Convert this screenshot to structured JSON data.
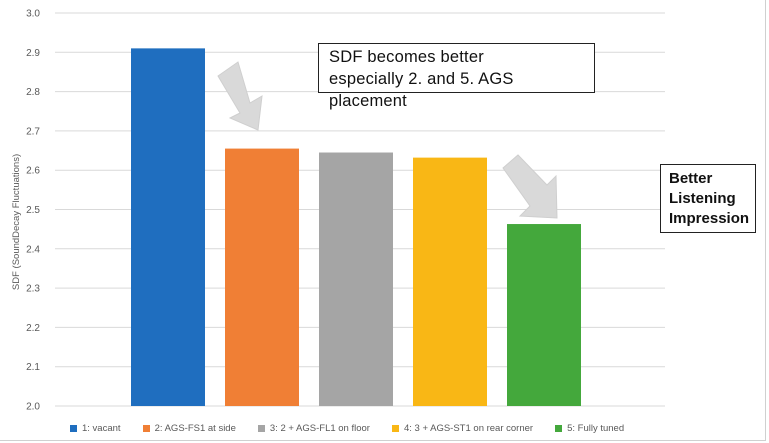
{
  "chart_data": {
    "type": "bar",
    "ylabel": "SDF (SoundDecay Fluctuations)",
    "ylim": [
      2.0,
      3.0
    ],
    "yticks": [
      "2.0",
      "2.1",
      "2.2",
      "2.3",
      "2.4",
      "2.5",
      "2.6",
      "2.7",
      "2.8",
      "2.9",
      "3.0"
    ],
    "grid": true,
    "legend_position": "bottom",
    "series": [
      {
        "name": "1: vacant",
        "value": 2.91,
        "color": "#1f6ebf"
      },
      {
        "name": "2: AGS-FS1 at side",
        "value": 2.655,
        "color": "#f07f35"
      },
      {
        "name": "3: 2 + AGS-FL1 on floor",
        "value": 2.645,
        "color": "#a5a5a5"
      },
      {
        "name": "4: 3 + AGS-ST1 on rear corner",
        "value": 2.632,
        "color": "#f9b715"
      },
      {
        "name": "5: Fully tuned",
        "value": 2.463,
        "color": "#44a83c"
      }
    ],
    "annotations": {
      "main_line1": "SDF becomes better",
      "main_line2": "especially 2. and 5. AGS placement",
      "side_line1": "Better",
      "side_line2": "Listening",
      "side_line3": "Impression"
    }
  }
}
